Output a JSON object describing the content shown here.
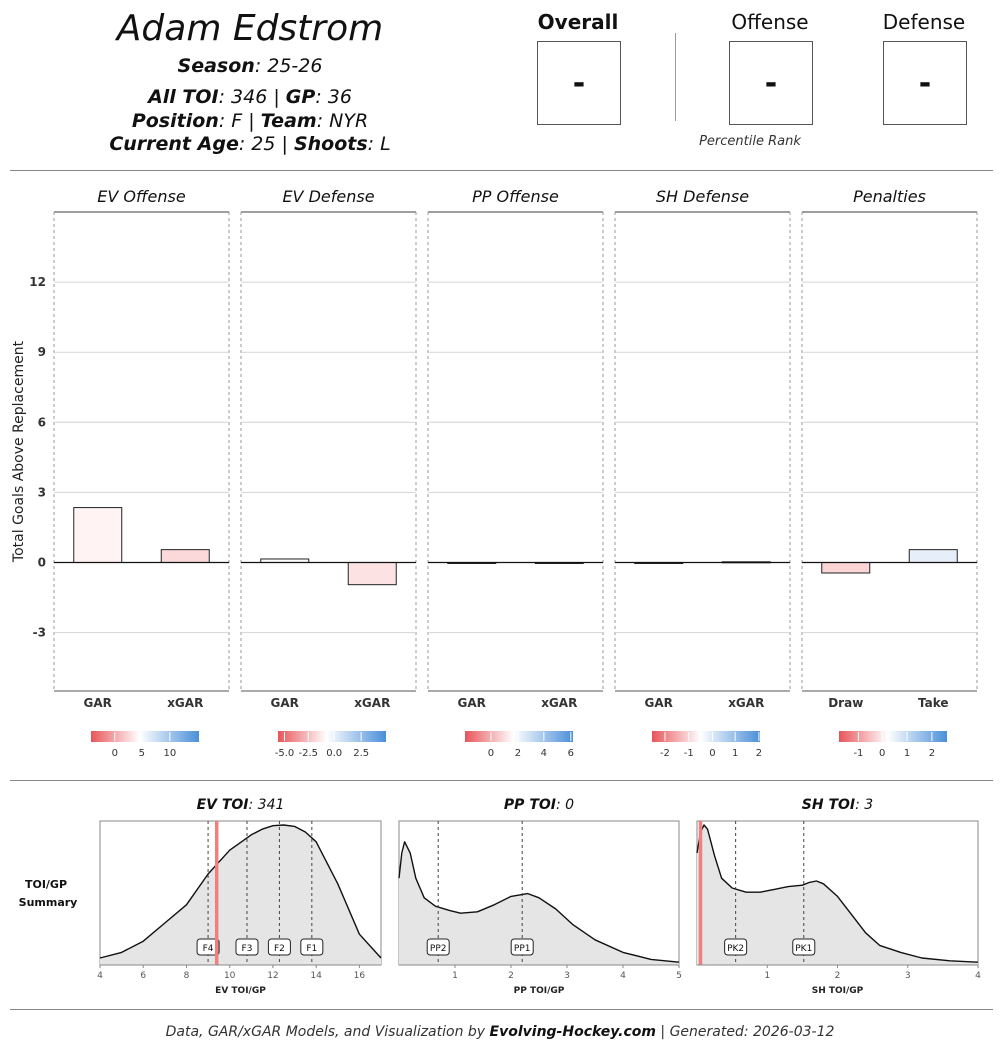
{
  "header": {
    "player_name": "Adam Edstrom",
    "season_label": "Season",
    "season_value": ": 25-26",
    "toi_label": "All TOI",
    "toi_value": ": 346 | ",
    "gp_label": "GP",
    "gp_value": ": 36",
    "position_label": "Position",
    "position_value": ": F | ",
    "team_label": "Team",
    "team_value": ": NYR",
    "age_label": "Current Age",
    "age_value": ": 25 | ",
    "shoots_label": "Shoots",
    "shoots_value": ": L"
  },
  "percentiles": {
    "overall_label": "Overall",
    "overall_value": "-",
    "offense_label": "Offense",
    "offense_value": "-",
    "defense_label": "Defense",
    "defense_value": "-",
    "caption": "Percentile Rank"
  },
  "footer": {
    "prefix": "Data, GAR/xGAR Models, and Visualization by ",
    "brand": "Evolving-Hockey.com",
    "suffix": " | Generated: 2026-03-12"
  },
  "colors": {
    "negative": "#e8555a",
    "positive": "#4a8fd9",
    "density_fill": "#e5e5e5",
    "player_line": "#f08080"
  },
  "chart_data": [
    {
      "type": "bar",
      "title": "Total Goals Above Replacement",
      "ylabel": "Total Goals Above Replacement",
      "ylim": [
        -5.5,
        15
      ],
      "yticks": [
        -3,
        0,
        3,
        6,
        9,
        12
      ],
      "grid": true,
      "panels": [
        {
          "title": "EV Offense",
          "categories": [
            "GAR",
            "xGAR"
          ],
          "values": [
            2.35,
            0.55
          ],
          "fills": [
            "#fff3f3",
            "#fbd9da"
          ],
          "legend_ticks": [
            "0",
            "5",
            "10"
          ],
          "legend_tick_fracs": [
            0.22,
            0.47,
            0.73
          ]
        },
        {
          "title": "EV Defense",
          "categories": [
            "GAR",
            "xGAR"
          ],
          "values": [
            0.15,
            -0.95
          ],
          "fills": [
            "#fefefe",
            "#fde2e3"
          ],
          "legend_ticks": [
            "-5.0",
            "-2.5",
            "0.0",
            "2.5"
          ],
          "legend_tick_fracs": [
            0.06,
            0.28,
            0.52,
            0.77
          ]
        },
        {
          "title": "PP Offense",
          "categories": [
            "GAR",
            "xGAR"
          ],
          "values": [
            0,
            0
          ],
          "fills": [
            "#ffffff",
            "#ffffff"
          ],
          "legend_ticks": [
            "0",
            "2",
            "4",
            "6"
          ],
          "legend_tick_fracs": [
            0.24,
            0.49,
            0.73,
            0.98
          ]
        },
        {
          "title": "SH Defense",
          "categories": [
            "GAR",
            "xGAR"
          ],
          "values": [
            -0.02,
            0.03
          ],
          "fills": [
            "#ffffff",
            "#ffffff"
          ],
          "legend_ticks": [
            "-2",
            "-1",
            "0",
            "1",
            "2"
          ],
          "legend_tick_fracs": [
            0.12,
            0.34,
            0.56,
            0.77,
            0.99
          ]
        },
        {
          "title": "Penalties",
          "categories": [
            "Draw",
            "Take"
          ],
          "values": [
            -0.45,
            0.55
          ],
          "fills": [
            "#fbd4d5",
            "#e6eefa"
          ],
          "legend_ticks": [
            "-1",
            "0",
            "1",
            "2"
          ],
          "legend_tick_fracs": [
            0.18,
            0.4,
            0.63,
            0.86
          ]
        }
      ]
    },
    {
      "type": "area",
      "title": "TOI/GP Summary",
      "row_label_1": "TOI/GP",
      "row_label_2": "Summary",
      "panels": [
        {
          "title_label": "EV TOI",
          "title_value": ": 341",
          "xlabel": "EV TOI/GP",
          "xlim": [
            4,
            17
          ],
          "xticks": [
            4,
            6,
            8,
            10,
            12,
            14,
            16
          ],
          "player_value": 9.4,
          "markers": [
            {
              "label": "F4",
              "x": 9.0
            },
            {
              "label": "F3",
              "x": 10.8
            },
            {
              "label": "F2",
              "x": 12.3
            },
            {
              "label": "F1",
              "x": 13.8
            }
          ],
          "density_x": [
            4,
            5,
            6,
            7,
            8,
            9,
            10,
            11,
            11.5,
            12,
            12.5,
            13,
            13.5,
            14,
            15,
            16,
            17
          ],
          "density_y": [
            0.05,
            0.09,
            0.17,
            0.3,
            0.43,
            0.65,
            0.82,
            0.93,
            0.97,
            0.995,
            1.0,
            0.99,
            0.95,
            0.88,
            0.58,
            0.22,
            0.05
          ]
        },
        {
          "title_label": "PP TOI",
          "title_value": ": 0",
          "xlabel": "PP TOI/GP",
          "xlim": [
            0,
            5
          ],
          "xticks": [
            1,
            2,
            3,
            4,
            5
          ],
          "player_value": null,
          "markers": [
            {
              "label": "PP2",
              "x": 0.7
            },
            {
              "label": "PP1",
              "x": 2.2
            }
          ],
          "density_x": [
            0,
            0.05,
            0.1,
            0.2,
            0.3,
            0.45,
            0.65,
            0.9,
            1.1,
            1.4,
            1.7,
            2.0,
            2.3,
            2.5,
            2.8,
            3.1,
            3.5,
            4.0,
            4.5,
            5.0
          ],
          "density_y": [
            0.62,
            0.8,
            0.88,
            0.8,
            0.62,
            0.48,
            0.42,
            0.39,
            0.37,
            0.38,
            0.43,
            0.49,
            0.51,
            0.48,
            0.4,
            0.29,
            0.18,
            0.09,
            0.04,
            0.02
          ]
        },
        {
          "title_label": "SH TOI",
          "title_value": ": 3",
          "xlabel": "SH TOI/GP",
          "xlim": [
            0,
            4
          ],
          "xticks": [
            1,
            2,
            3,
            4
          ],
          "player_value": 0.05,
          "markers": [
            {
              "label": "PK2",
              "x": 0.55
            },
            {
              "label": "PK1",
              "x": 1.52
            }
          ],
          "density_x": [
            0,
            0.05,
            0.1,
            0.15,
            0.25,
            0.35,
            0.5,
            0.7,
            0.9,
            1.1,
            1.3,
            1.5,
            1.6,
            1.7,
            1.8,
            2.0,
            2.2,
            2.4,
            2.6,
            2.9,
            3.2,
            3.6,
            4.0
          ],
          "density_y": [
            0.8,
            0.95,
            1.0,
            0.97,
            0.78,
            0.62,
            0.55,
            0.52,
            0.52,
            0.54,
            0.56,
            0.57,
            0.59,
            0.6,
            0.58,
            0.49,
            0.36,
            0.23,
            0.14,
            0.09,
            0.05,
            0.03,
            0.02
          ]
        }
      ]
    }
  ]
}
